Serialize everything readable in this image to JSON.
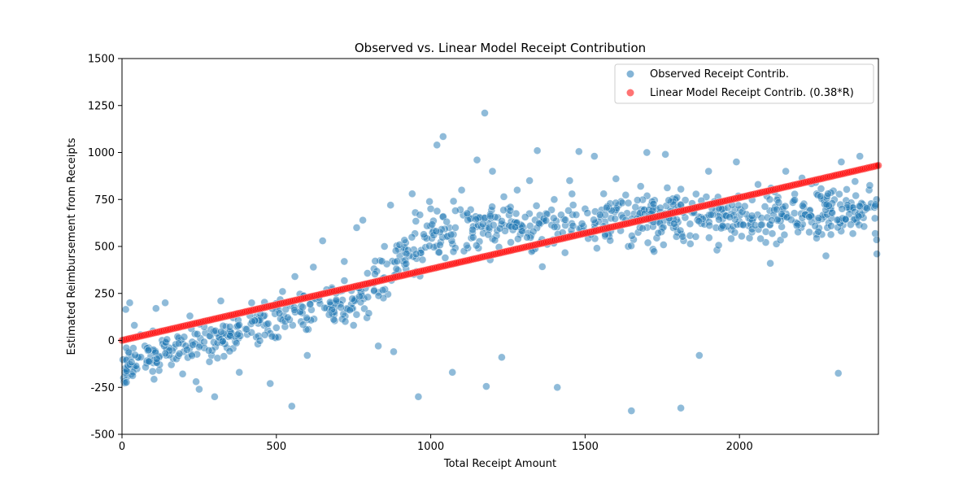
{
  "chart_data": {
    "type": "scatter",
    "title": "Observed vs. Linear Model Receipt Contribution",
    "xlabel": "Total Receipt Amount",
    "ylabel": "Estimated Reimbursement from Receipts",
    "xlim": [
      0,
      2450
    ],
    "ylim": [
      -500,
      1500
    ],
    "xticks": [
      0,
      500,
      1000,
      1500,
      2000
    ],
    "yticks": [
      -500,
      -250,
      0,
      250,
      500,
      750,
      1000,
      1250,
      1500
    ],
    "grid": false,
    "legend_position": "top-right",
    "series": [
      {
        "name": "Observed Receipt Contrib.",
        "color": "#1f77b4",
        "points": [
          [
            5,
            -200
          ],
          [
            10,
            -150
          ],
          [
            12,
            165
          ],
          [
            15,
            -100
          ],
          [
            20,
            -60
          ],
          [
            25,
            200
          ],
          [
            30,
            -180
          ],
          [
            40,
            80
          ],
          [
            55,
            -90
          ],
          [
            60,
            30
          ],
          [
            80,
            -120
          ],
          [
            100,
            50
          ],
          [
            110,
            170
          ],
          [
            120,
            -160
          ],
          [
            130,
            0
          ],
          [
            140,
            200
          ],
          [
            160,
            -130
          ],
          [
            180,
            20
          ],
          [
            200,
            -60
          ],
          [
            220,
            130
          ],
          [
            240,
            -220
          ],
          [
            250,
            -260
          ],
          [
            270,
            40
          ],
          [
            290,
            -80
          ],
          [
            300,
            -300
          ],
          [
            320,
            210
          ],
          [
            340,
            -40
          ],
          [
            360,
            120
          ],
          [
            380,
            -170
          ],
          [
            400,
            60
          ],
          [
            420,
            200
          ],
          [
            440,
            -20
          ],
          [
            460,
            80
          ],
          [
            480,
            -230
          ],
          [
            500,
            170
          ],
          [
            520,
            260
          ],
          [
            550,
            -350
          ],
          [
            560,
            340
          ],
          [
            580,
            100
          ],
          [
            600,
            -80
          ],
          [
            620,
            390
          ],
          [
            650,
            530
          ],
          [
            680,
            280
          ],
          [
            700,
            200
          ],
          [
            720,
            420
          ],
          [
            750,
            80
          ],
          [
            760,
            600
          ],
          [
            780,
            640
          ],
          [
            800,
            300
          ],
          [
            830,
            -30
          ],
          [
            850,
            500
          ],
          [
            870,
            720
          ],
          [
            880,
            -60
          ],
          [
            900,
            450
          ],
          [
            920,
            380
          ],
          [
            940,
            780
          ],
          [
            950,
            680
          ],
          [
            960,
            -300
          ],
          [
            980,
            550
          ],
          [
            1000,
            700
          ],
          [
            1020,
            1040
          ],
          [
            1040,
            1085
          ],
          [
            1060,
            600
          ],
          [
            1070,
            -170
          ],
          [
            1100,
            800
          ],
          [
            1130,
            650
          ],
          [
            1150,
            960
          ],
          [
            1175,
            1210
          ],
          [
            1180,
            -245
          ],
          [
            1200,
            900
          ],
          [
            1230,
            -90
          ],
          [
            1250,
            700
          ],
          [
            1280,
            800
          ],
          [
            1300,
            600
          ],
          [
            1320,
            850
          ],
          [
            1345,
            1010
          ],
          [
            1400,
            750
          ],
          [
            1410,
            -250
          ],
          [
            1450,
            850
          ],
          [
            1480,
            1005
          ],
          [
            1500,
            700
          ],
          [
            1530,
            980
          ],
          [
            1560,
            780
          ],
          [
            1600,
            860
          ],
          [
            1640,
            500
          ],
          [
            1650,
            -375
          ],
          [
            1680,
            820
          ],
          [
            1700,
            1000
          ],
          [
            1730,
            700
          ],
          [
            1760,
            990
          ],
          [
            1790,
            750
          ],
          [
            1810,
            -360
          ],
          [
            1840,
            620
          ],
          [
            1870,
            -80
          ],
          [
            1900,
            900
          ],
          [
            1950,
            700
          ],
          [
            1990,
            950
          ],
          [
            2030,
            650
          ],
          [
            2060,
            830
          ],
          [
            2100,
            410
          ],
          [
            2150,
            900
          ],
          [
            2200,
            600
          ],
          [
            2250,
            780
          ],
          [
            2280,
            450
          ],
          [
            2320,
            -175
          ],
          [
            2330,
            950
          ],
          [
            2360,
            700
          ],
          [
            2390,
            980
          ],
          [
            2420,
            800
          ],
          [
            2445,
            460
          ]
        ]
      },
      {
        "name": "Linear Model Receipt Contrib. (0.38*R)",
        "color": "#ff0000",
        "slope": 0.38,
        "x_min": 0,
        "x_max": 2450
      }
    ]
  }
}
